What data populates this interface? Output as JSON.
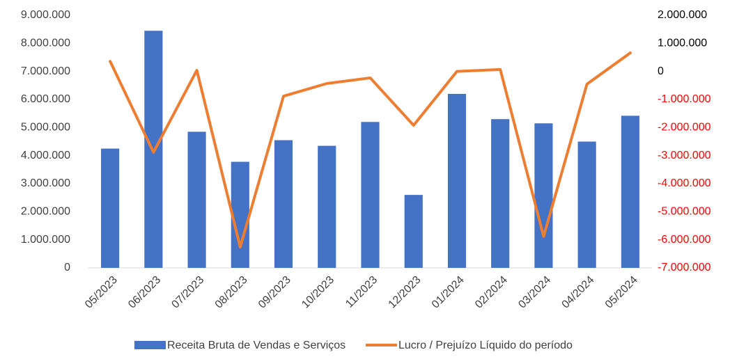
{
  "chart_data": {
    "type": "bar_line",
    "categories": [
      "05/2023",
      "06/2023",
      "07/2023",
      "08/2023",
      "09/2023",
      "10/2023",
      "11/2023",
      "12/2023",
      "01/2024",
      "02/2024",
      "03/2024",
      "04/2024",
      "05/2024"
    ],
    "series": [
      {
        "name": "Receita Bruta de Vendas e Serviços",
        "type": "bar",
        "color": "#4472c4",
        "axis": "y",
        "values": [
          4250000,
          8450000,
          4850000,
          3780000,
          4550000,
          4350000,
          5200000,
          2600000,
          6200000,
          5300000,
          5150000,
          4500000,
          5420000
        ]
      },
      {
        "name": "Lucro / Prejuízo Líquido do período",
        "type": "line",
        "color": "#ed7d31",
        "axis": "y2",
        "values": [
          360000,
          -2880000,
          40000,
          -6260000,
          -880000,
          -430000,
          -230000,
          -1920000,
          0,
          70000,
          -5880000,
          -450000,
          660000
        ]
      }
    ],
    "ylim": [
      0,
      9000000
    ],
    "yticks": [
      0,
      {
        "value": 1000000,
        "label": "1.000.000"
      },
      {
        "value": 2000000,
        "label": "2.000.000"
      },
      {
        "value": 3000000,
        "label": "3.000.000"
      },
      {
        "value": 4000000,
        "label": "4.000.000"
      },
      {
        "value": 5000000,
        "label": "5.000.000"
      },
      {
        "value": 6000000,
        "label": "6.000.000"
      },
      {
        "value": 7000000,
        "label": "7.000.000"
      },
      {
        "value": 8000000,
        "label": "8.000.000"
      },
      {
        "value": 9000000,
        "label": "9.000.000"
      }
    ],
    "y2lim": [
      -7000000,
      2000000
    ],
    "y2ticks": [
      {
        "value": -7000000,
        "label": "-7.000.000"
      },
      {
        "value": -6000000,
        "label": "-6.000.000"
      },
      {
        "value": -5000000,
        "label": "-5.000.000"
      },
      {
        "value": -4000000,
        "label": "-4.000.000"
      },
      {
        "value": -3000000,
        "label": "-3.000.000"
      },
      {
        "value": -2000000,
        "label": "-2.000.000"
      },
      {
        "value": -1000000,
        "label": "-1.000.000"
      },
      0,
      {
        "value": 1000000,
        "label": "1.000.000"
      },
      {
        "value": 2000000,
        "label": "2.000.000"
      }
    ],
    "y2_negative_color": "#ff0000",
    "grid": false,
    "legend": "bottom"
  }
}
